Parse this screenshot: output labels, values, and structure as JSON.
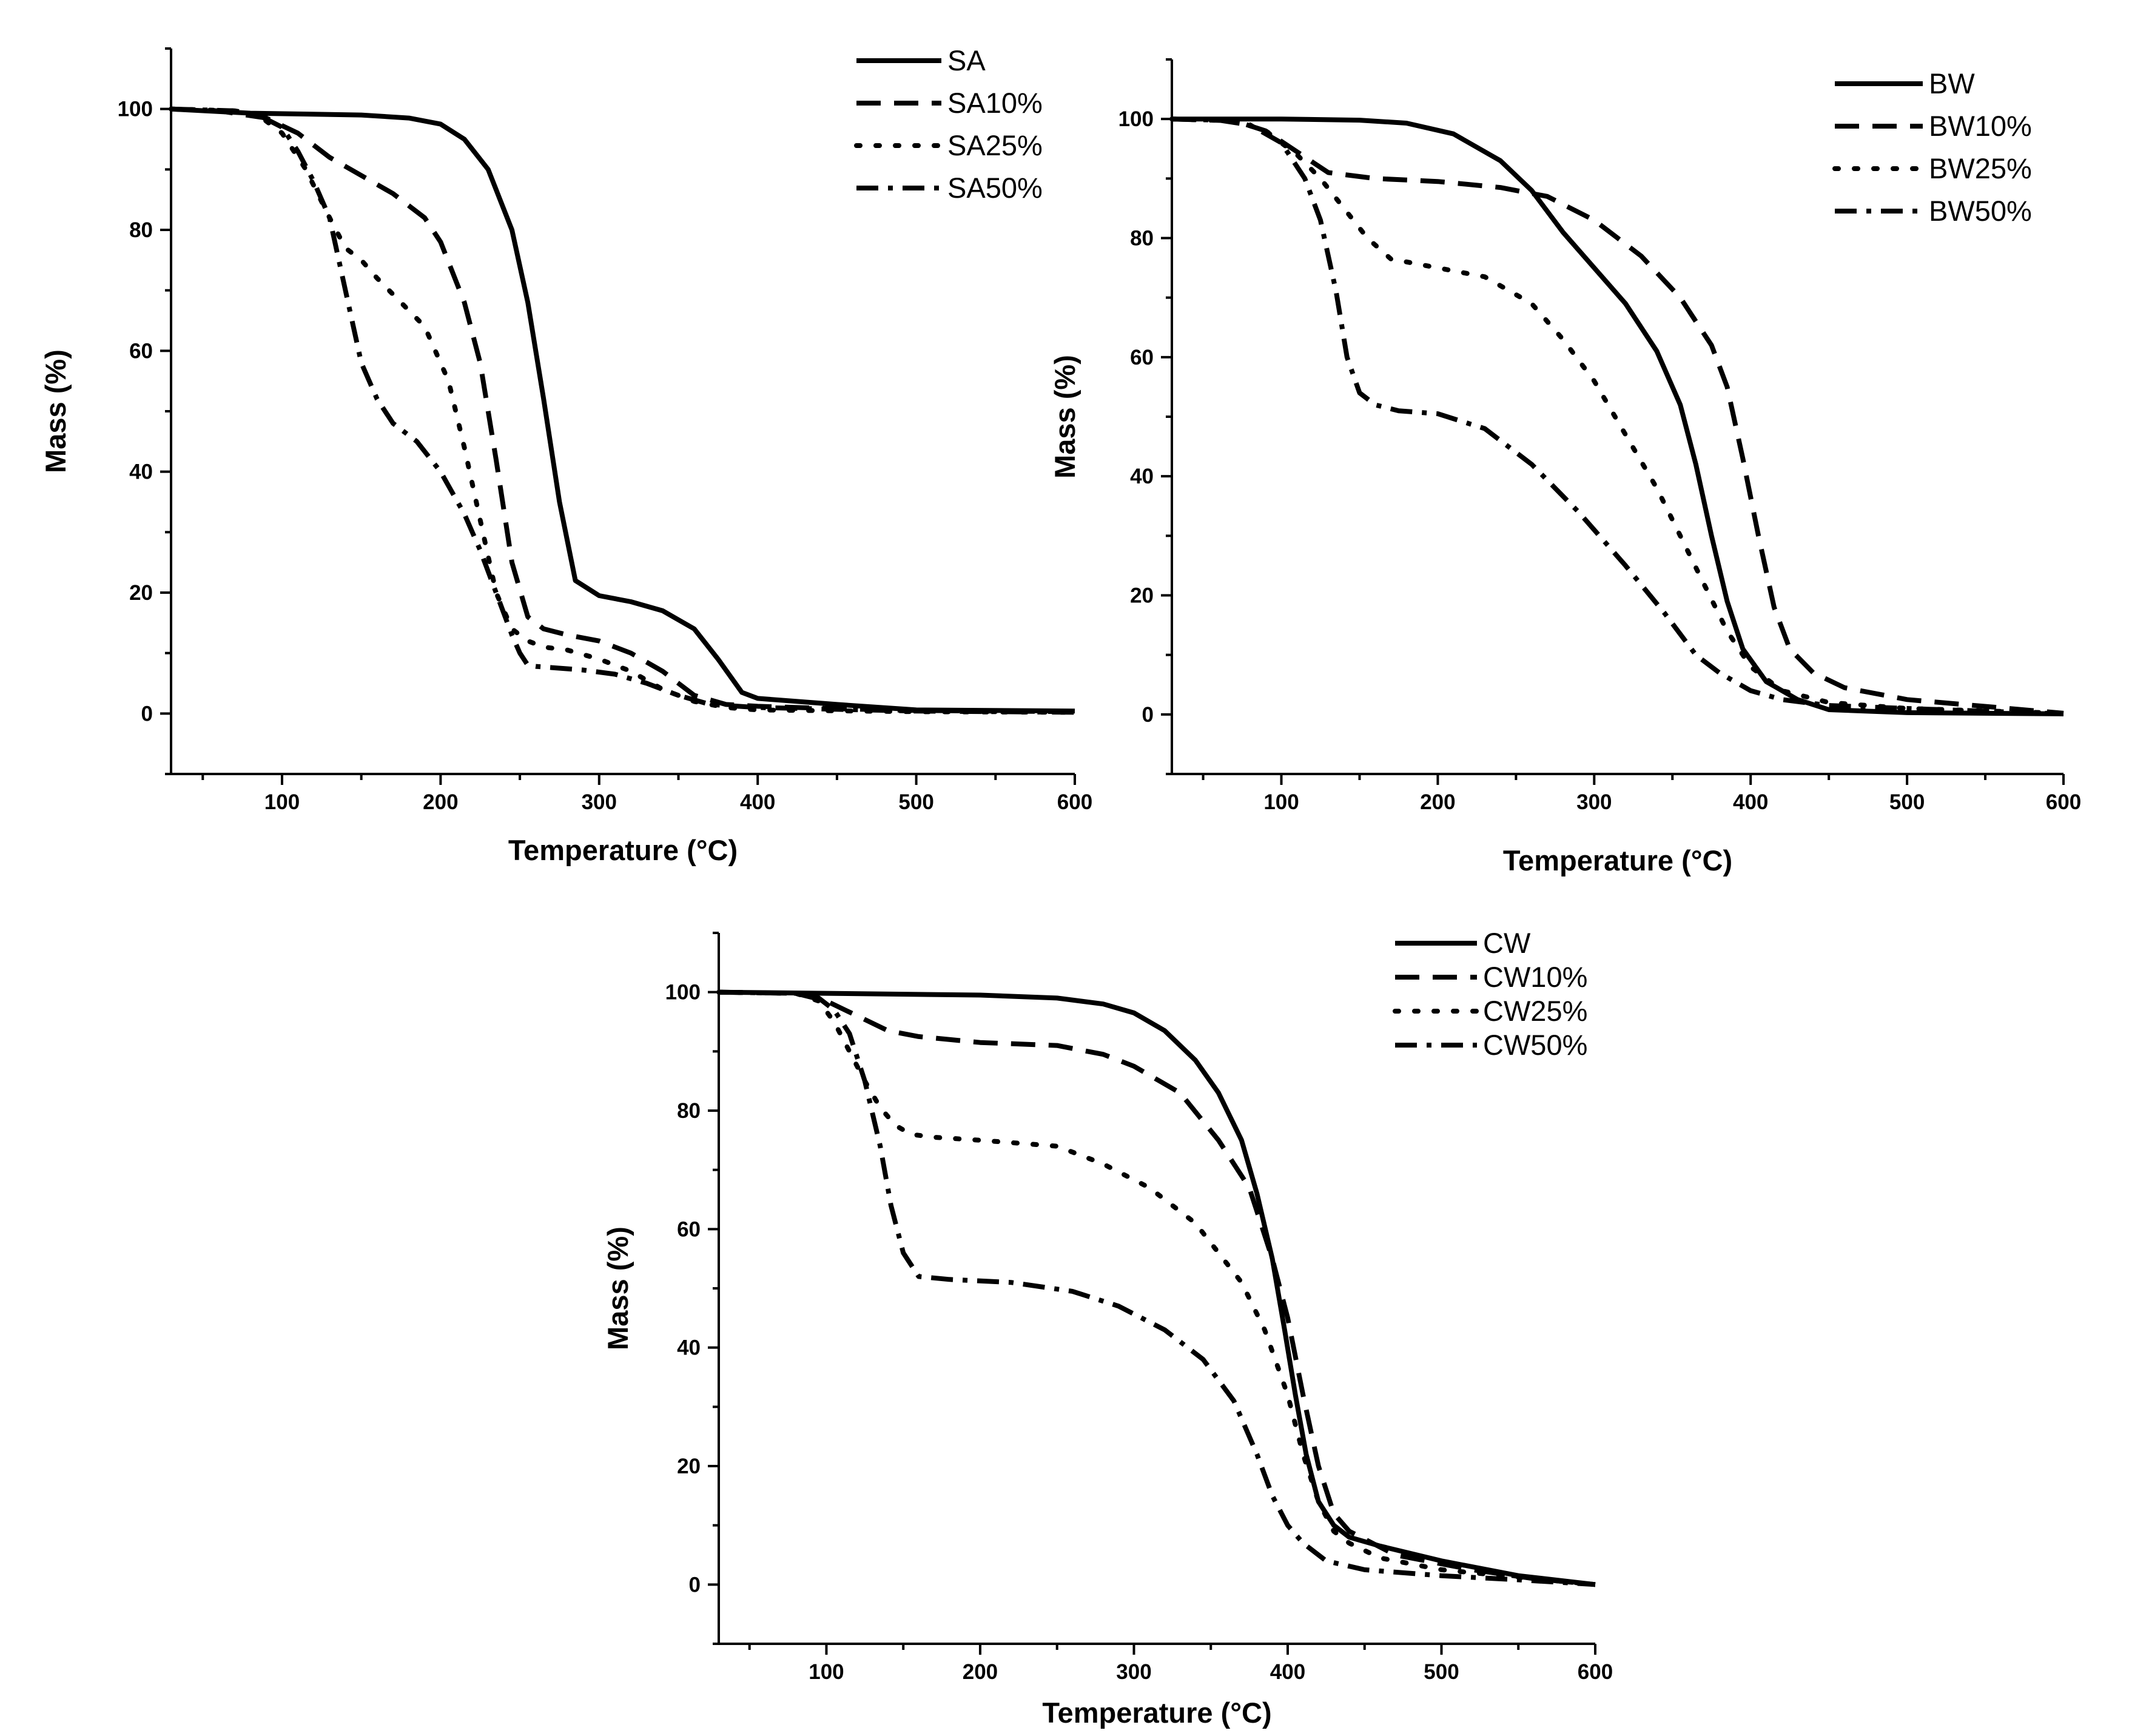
{
  "chart_data": [
    {
      "type": "line",
      "xlabel": "Temperature (°C)",
      "ylabel": "Mass (%)",
      "xlim": [
        30,
        600
      ],
      "ylim": [
        -10,
        110
      ],
      "xticks": [
        100,
        200,
        300,
        400,
        500,
        600
      ],
      "yticks": [
        0,
        20,
        40,
        60,
        80,
        100
      ],
      "legend_position": "top-right",
      "series": [
        {
          "name": "SA",
          "style": "solid",
          "x": [
            30,
            80,
            150,
            180,
            200,
            215,
            230,
            245,
            255,
            265,
            275,
            285,
            300,
            320,
            340,
            360,
            375,
            390,
            400,
            450,
            500,
            600
          ],
          "y": [
            100,
            99.3,
            99,
            98.5,
            97.5,
            95,
            90,
            80,
            68,
            52,
            35,
            22,
            19.5,
            18.5,
            17,
            14,
            9,
            3.5,
            2.5,
            1.5,
            0.6,
            0.4
          ]
        },
        {
          "name": "SA10%",
          "style": "dashed",
          "x": [
            30,
            60,
            90,
            110,
            130,
            150,
            170,
            190,
            200,
            215,
            225,
            235,
            245,
            255,
            265,
            280,
            300,
            320,
            340,
            350,
            360,
            380,
            400,
            450,
            500,
            600
          ],
          "y": [
            100,
            99.7,
            98.5,
            96,
            92,
            89,
            86,
            82,
            78,
            68,
            58,
            42,
            25,
            16,
            14,
            13,
            12,
            10,
            7,
            5,
            3,
            1.5,
            1.2,
            0.8,
            0.5,
            0.3
          ]
        },
        {
          "name": "SA25%",
          "style": "dotted",
          "x": [
            30,
            70,
            85,
            100,
            115,
            130,
            140,
            150,
            160,
            175,
            190,
            205,
            215,
            225,
            235,
            245,
            255,
            265,
            280,
            300,
            320,
            340,
            360,
            380,
            400,
            500,
            600
          ],
          "y": [
            100,
            99.7,
            99,
            96,
            90,
            82,
            77,
            75,
            72,
            68,
            64,
            55,
            44,
            32,
            20,
            14,
            12,
            11,
            10.5,
            9,
            7,
            4,
            2,
            1,
            0.6,
            0.3,
            0.2
          ]
        },
        {
          "name": "SA50%",
          "style": "dashdot",
          "x": [
            30,
            70,
            85,
            100,
            110,
            120,
            130,
            140,
            150,
            160,
            170,
            185,
            200,
            215,
            225,
            235,
            245,
            250,
            255,
            260,
            270,
            290,
            310,
            330,
            350,
            370,
            400,
            500,
            600
          ],
          "y": [
            100,
            99.7,
            99,
            97,
            93,
            88,
            82,
            70,
            58,
            52,
            48,
            45,
            40,
            33,
            27,
            20,
            13,
            10,
            8,
            7.8,
            7.6,
            7.2,
            6.5,
            5,
            3,
            1.5,
            1,
            0.4,
            0.2
          ]
        }
      ]
    },
    {
      "type": "line",
      "xlabel": "Temperature (°C)",
      "ylabel": "Mass (%)",
      "xlim": [
        30,
        600
      ],
      "ylim": [
        -10,
        110
      ],
      "xticks": [
        100,
        200,
        300,
        400,
        500,
        600
      ],
      "yticks": [
        0,
        20,
        40,
        60,
        80,
        100
      ],
      "legend_position": "top-right",
      "series": [
        {
          "name": "BW",
          "style": "solid",
          "x": [
            30,
            100,
            150,
            180,
            210,
            240,
            260,
            280,
            300,
            320,
            340,
            355,
            365,
            375,
            385,
            395,
            410,
            430,
            450,
            500,
            600
          ],
          "y": [
            100,
            100,
            99.8,
            99.3,
            97.5,
            93,
            88,
            81,
            75,
            69,
            61,
            52,
            42,
            30,
            19,
            11,
            5.5,
            2.5,
            0.8,
            0.3,
            0.1
          ]
        },
        {
          "name": "BW10%",
          "style": "dashed",
          "x": [
            30,
            70,
            90,
            110,
            130,
            160,
            200,
            240,
            270,
            300,
            330,
            355,
            375,
            385,
            395,
            405,
            415,
            425,
            440,
            460,
            500,
            600
          ],
          "y": [
            100,
            99.7,
            98,
            94.5,
            91,
            90,
            89.5,
            88.5,
            87,
            83,
            77,
            70,
            62,
            55,
            43,
            30,
            18,
            11,
            7,
            4.5,
            2.5,
            0.2
          ]
        },
        {
          "name": "BW25%",
          "style": "dotted",
          "x": [
            30,
            70,
            90,
            110,
            125,
            140,
            155,
            170,
            200,
            230,
            260,
            280,
            300,
            320,
            340,
            355,
            370,
            385,
            400,
            420,
            450,
            500,
            600
          ],
          "y": [
            100,
            99.7,
            98,
            94,
            90,
            85,
            80,
            76.5,
            75,
            73.5,
            69,
            63,
            56,
            47,
            38,
            30,
            22,
            14,
            8,
            4,
            2,
            1,
            0.2
          ]
        },
        {
          "name": "BW50%",
          "style": "dashdot",
          "x": [
            30,
            60,
            80,
            100,
            115,
            125,
            135,
            142,
            150,
            160,
            175,
            200,
            230,
            260,
            290,
            320,
            345,
            365,
            380,
            400,
            420,
            450,
            500,
            600
          ],
          "y": [
            100,
            99.8,
            99,
            96,
            90,
            83,
            71,
            60,
            54,
            52,
            51,
            50.5,
            48,
            42,
            34,
            25,
            17,
            10,
            7,
            4,
            2.5,
            1.5,
            1,
            0.1
          ]
        }
      ]
    },
    {
      "type": "line",
      "xlabel": "Temperature (°C)",
      "ylabel": "Mass (%)",
      "xlim": [
        30,
        600
      ],
      "ylim": [
        -10,
        110
      ],
      "xticks": [
        100,
        200,
        300,
        400,
        500,
        600
      ],
      "yticks": [
        0,
        20,
        40,
        60,
        80,
        100
      ],
      "legend_position": "top-right",
      "series": [
        {
          "name": "CW",
          "style": "solid",
          "x": [
            30,
            100,
            200,
            250,
            280,
            300,
            320,
            340,
            355,
            370,
            380,
            390,
            398,
            405,
            412,
            420,
            430,
            440,
            460,
            500,
            550,
            600
          ],
          "y": [
            100,
            99.8,
            99.5,
            99,
            98,
            96.5,
            93.5,
            88.5,
            83,
            75,
            66,
            55,
            43,
            32,
            22,
            14,
            10,
            8,
            6.5,
            4,
            1.5,
            0
          ]
        },
        {
          "name": "CW10%",
          "style": "dashed",
          "x": [
            30,
            80,
            100,
            120,
            140,
            160,
            200,
            250,
            280,
            300,
            330,
            355,
            375,
            390,
            400,
            410,
            420,
            430,
            440,
            470,
            520,
            560,
            600
          ],
          "y": [
            100,
            99.8,
            98.5,
            96,
            93.5,
            92.5,
            91.5,
            91,
            89.5,
            87.5,
            83,
            75,
            67,
            55,
            45,
            32,
            20,
            12,
            9,
            5,
            2.5,
            1,
            0
          ]
        },
        {
          "name": "CW25%",
          "style": "dotted",
          "x": [
            30,
            80,
            95,
            105,
            115,
            125,
            135,
            145,
            155,
            170,
            200,
            250,
            280,
            310,
            340,
            370,
            385,
            400,
            410,
            420,
            430,
            440,
            460,
            500,
            560,
            600
          ],
          "y": [
            100,
            99.8,
            98.5,
            95,
            90,
            85,
            80.5,
            77.5,
            76,
            75.5,
            75,
            74,
            71,
            67,
            61,
            51,
            43,
            32,
            22,
            14,
            9,
            7,
            4.5,
            2.5,
            1,
            0
          ]
        },
        {
          "name": "CW50%",
          "style": "dashdot",
          "x": [
            30,
            80,
            95,
            105,
            115,
            125,
            135,
            142,
            150,
            160,
            180,
            220,
            260,
            290,
            320,
            345,
            365,
            380,
            390,
            400,
            410,
            425,
            450,
            500,
            550,
            600
          ],
          "y": [
            100,
            99.8,
            99,
            97,
            93,
            85,
            74,
            64,
            56,
            52,
            51.5,
            51,
            49.5,
            47,
            43,
            38,
            31,
            22,
            15,
            10,
            7,
            4,
            2.5,
            1.5,
            0.8,
            0
          ]
        }
      ]
    }
  ]
}
